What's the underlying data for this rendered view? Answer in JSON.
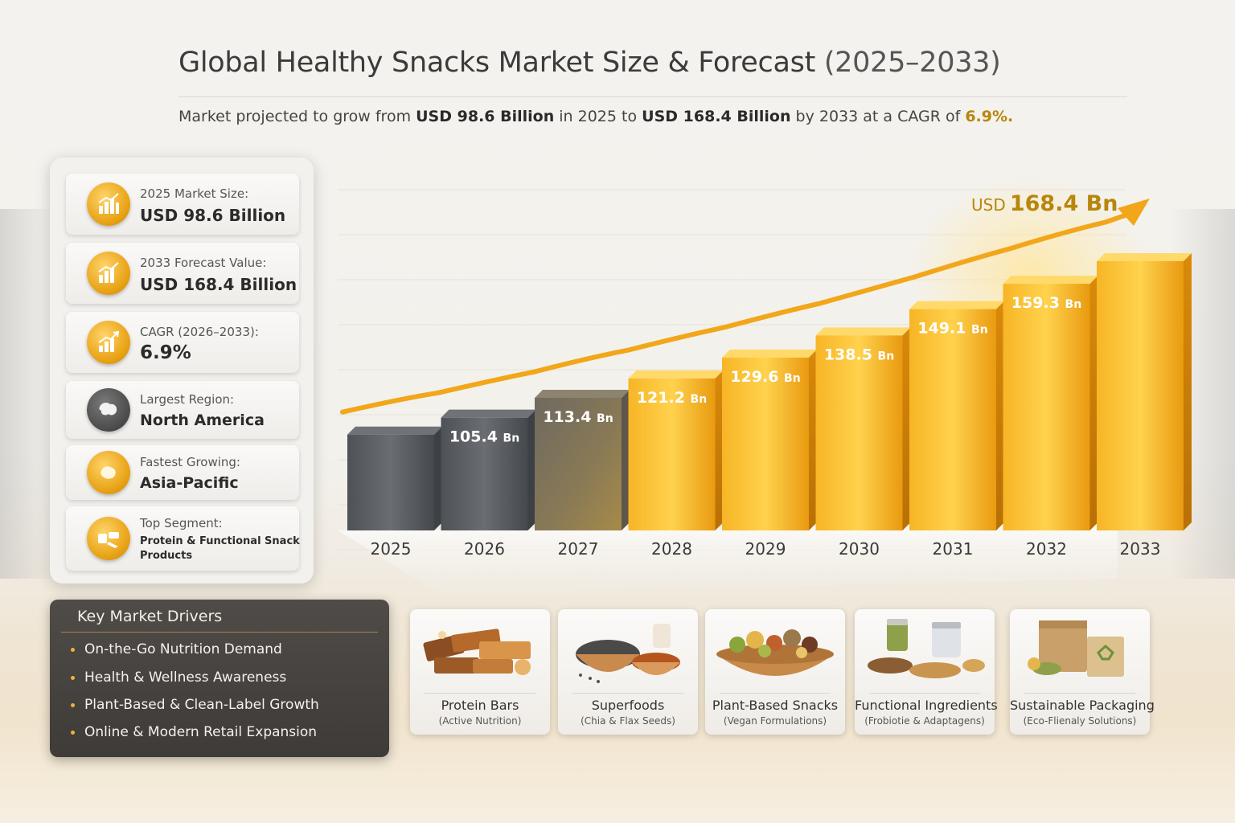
{
  "header": {
    "title_main": "Global Healthy Snacks Market Size & Forecast",
    "title_years": "(2025–2033)",
    "subtitle_1": "Market projected to grow from ",
    "subtitle_start": "USD 98.6 Billion",
    "subtitle_2": " in 2025 to ",
    "subtitle_end": "USD 168.4 Billion",
    "subtitle_3": " by 2033 at a CAGR of ",
    "subtitle_cagr": "6.9%."
  },
  "stats": [
    {
      "label": "2025 Market Size:",
      "value": "USD 98.6 Billion",
      "icon": "bar-chart-icon"
    },
    {
      "label": "2033 Forecast Value:",
      "value": "USD 168.4 Billion",
      "icon": "bar-chart-icon"
    },
    {
      "label": "CAGR (2026–2033):",
      "value": "6.9%",
      "icon": "growth-chart-icon"
    },
    {
      "label": "Largest Region:",
      "value": "North America",
      "icon": "globe-icon"
    },
    {
      "label": "Fastest Growing:",
      "value": "Asia-Pacific",
      "icon": "globe-icon"
    },
    {
      "label": "Top Segment:",
      "value_line1": "Protein & Functional Snack",
      "value_line2": "Products",
      "icon": "snack-bar-icon"
    }
  ],
  "drivers": {
    "title": "Key Market Drivers",
    "items": [
      "On-the-Go Nutrition Demand",
      "Health & Wellness Awareness",
      "Plant-Based & Clean-Label Growth",
      "Online & Modern Retail Expansion"
    ]
  },
  "chart_data": {
    "type": "bar",
    "categories": [
      "2025",
      "2026",
      "2027",
      "2028",
      "2029",
      "2030",
      "2031",
      "2032",
      "2033"
    ],
    "values": [
      98.6,
      105.4,
      113.4,
      121.2,
      129.6,
      138.5,
      149.1,
      159.3,
      168.4
    ],
    "data_labels": [
      "",
      "105.4",
      "113.4",
      "121.2",
      "129.6",
      "138.5",
      "149.1",
      "159.3",
      ""
    ],
    "label_unit": "Bn",
    "callout": {
      "prefix": "USD",
      "value": "168.4 Bn"
    },
    "grid": true,
    "colors": {
      "historic": "#5a5d63",
      "transition": "#7d7360",
      "forecast": "#f0a818",
      "arrow": "#f2a61a"
    }
  },
  "segments": [
    {
      "name": "Protein Bars",
      "sub": "(Active Nutrition)"
    },
    {
      "name": "Superfoods",
      "sub": "(Chia & Flax Seeds)"
    },
    {
      "name": "Plant-Based Snacks",
      "sub": "(Vegan Formulations)"
    },
    {
      "name": "Functional Ingredients",
      "sub": "(Frobiotie & Adaptagens)"
    },
    {
      "name": "Sustainable Packaging",
      "sub": "(Eco-Flienaly Solutions)"
    }
  ]
}
